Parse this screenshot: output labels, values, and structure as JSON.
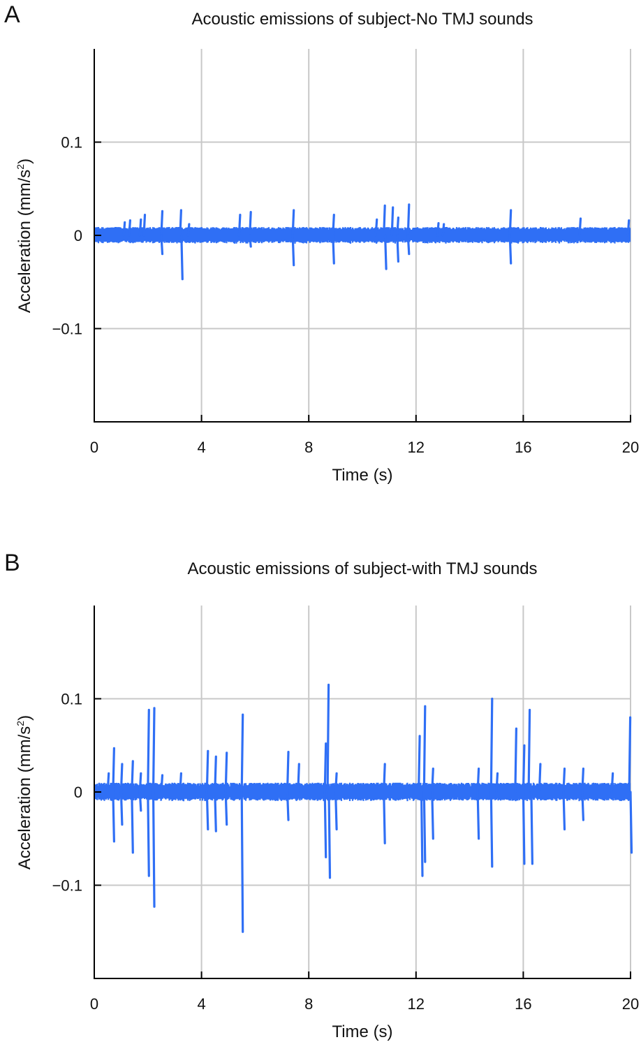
{
  "chart_data": [
    {
      "type": "line",
      "panel_label": "A",
      "title": "Acoustic emissions of subject-No TMJ sounds",
      "xlabel": "Time (s)",
      "ylabel": "Acceleration (mm/s",
      "ylabel_sup": "2",
      "ylabel_close": ")",
      "xlim": [
        0,
        20
      ],
      "ylim": [
        -0.2,
        0.2
      ],
      "xticks": [
        0,
        4,
        8,
        12,
        16,
        20
      ],
      "yticks": [
        -0.1,
        0,
        0.1
      ],
      "ytick_labels": [
        "−0.1",
        "0",
        "0.1"
      ],
      "grid": true,
      "line_color": "#2f6ff5",
      "baseline_amplitude": 0.009,
      "spikes": [
        {
          "x": 1.1,
          "y": 0.014
        },
        {
          "x": 1.3,
          "y": 0.016
        },
        {
          "x": 1.7,
          "y": 0.017
        },
        {
          "x": 1.85,
          "y": 0.022
        },
        {
          "x": 2.5,
          "y": 0.026
        },
        {
          "x": 2.5,
          "y": -0.02
        },
        {
          "x": 3.2,
          "y": 0.027
        },
        {
          "x": 3.25,
          "y": -0.047
        },
        {
          "x": 3.5,
          "y": 0.012
        },
        {
          "x": 5.4,
          "y": 0.022
        },
        {
          "x": 5.8,
          "y": 0.025
        },
        {
          "x": 5.8,
          "y": -0.012
        },
        {
          "x": 7.4,
          "y": 0.027
        },
        {
          "x": 7.4,
          "y": -0.032
        },
        {
          "x": 8.9,
          "y": 0.022
        },
        {
          "x": 8.9,
          "y": -0.03
        },
        {
          "x": 10.5,
          "y": 0.017
        },
        {
          "x": 10.8,
          "y": 0.032
        },
        {
          "x": 10.85,
          "y": -0.036
        },
        {
          "x": 11.1,
          "y": 0.03
        },
        {
          "x": 11.3,
          "y": 0.019
        },
        {
          "x": 11.3,
          "y": -0.028
        },
        {
          "x": 11.7,
          "y": 0.033
        },
        {
          "x": 11.7,
          "y": -0.02
        },
        {
          "x": 12.8,
          "y": 0.013
        },
        {
          "x": 13.0,
          "y": 0.012
        },
        {
          "x": 15.5,
          "y": 0.027
        },
        {
          "x": 15.5,
          "y": -0.03
        },
        {
          "x": 18.1,
          "y": 0.018
        },
        {
          "x": 19.9,
          "y": 0.016
        }
      ]
    },
    {
      "type": "line",
      "panel_label": "B",
      "title": "Acoustic emissions of subject-with TMJ sounds",
      "xlabel": "Time (s)",
      "ylabel": "Acceleration (mm/s",
      "ylabel_sup": "2",
      "ylabel_close": ")",
      "xlim": [
        0,
        20
      ],
      "ylim": [
        -0.2,
        0.2
      ],
      "xticks": [
        0,
        4,
        8,
        12,
        16,
        20
      ],
      "yticks": [
        -0.1,
        0,
        0.1
      ],
      "ytick_labels": [
        "−0.1",
        "0",
        "0.1"
      ],
      "grid": true,
      "line_color": "#2f6ff5",
      "baseline_amplitude": 0.01,
      "spikes": [
        {
          "x": 0.5,
          "y": 0.02
        },
        {
          "x": 0.7,
          "y": 0.047
        },
        {
          "x": 0.7,
          "y": -0.053
        },
        {
          "x": 1.0,
          "y": 0.03
        },
        {
          "x": 1.0,
          "y": -0.035
        },
        {
          "x": 1.4,
          "y": 0.033
        },
        {
          "x": 1.4,
          "y": -0.065
        },
        {
          "x": 1.7,
          "y": 0.02
        },
        {
          "x": 1.7,
          "y": -0.02
        },
        {
          "x": 2.0,
          "y": 0.088
        },
        {
          "x": 2.0,
          "y": -0.09
        },
        {
          "x": 2.2,
          "y": 0.09
        },
        {
          "x": 2.2,
          "y": -0.123
        },
        {
          "x": 2.5,
          "y": 0.018
        },
        {
          "x": 3.2,
          "y": 0.02
        },
        {
          "x": 4.2,
          "y": 0.044
        },
        {
          "x": 4.2,
          "y": -0.04
        },
        {
          "x": 4.5,
          "y": 0.038
        },
        {
          "x": 4.5,
          "y": -0.042
        },
        {
          "x": 4.9,
          "y": 0.042
        },
        {
          "x": 4.9,
          "y": -0.035
        },
        {
          "x": 5.5,
          "y": 0.083
        },
        {
          "x": 5.5,
          "y": -0.15
        },
        {
          "x": 7.2,
          "y": 0.043
        },
        {
          "x": 7.2,
          "y": -0.03
        },
        {
          "x": 7.6,
          "y": 0.03
        },
        {
          "x": 8.6,
          "y": 0.052
        },
        {
          "x": 8.6,
          "y": -0.07
        },
        {
          "x": 8.7,
          "y": 0.115
        },
        {
          "x": 8.75,
          "y": -0.092
        },
        {
          "x": 9.0,
          "y": 0.02
        },
        {
          "x": 9.0,
          "y": -0.04
        },
        {
          "x": 10.8,
          "y": 0.03
        },
        {
          "x": 10.8,
          "y": -0.055
        },
        {
          "x": 12.1,
          "y": 0.06
        },
        {
          "x": 12.2,
          "y": -0.09
        },
        {
          "x": 12.3,
          "y": 0.092
        },
        {
          "x": 12.3,
          "y": -0.075
        },
        {
          "x": 12.6,
          "y": 0.025
        },
        {
          "x": 12.6,
          "y": -0.05
        },
        {
          "x": 14.3,
          "y": 0.025
        },
        {
          "x": 14.3,
          "y": -0.05
        },
        {
          "x": 14.8,
          "y": 0.1
        },
        {
          "x": 14.8,
          "y": -0.08
        },
        {
          "x": 15.0,
          "y": 0.02
        },
        {
          "x": 15.7,
          "y": 0.068
        },
        {
          "x": 16.0,
          "y": 0.05
        },
        {
          "x": 16.0,
          "y": -0.077
        },
        {
          "x": 16.2,
          "y": 0.088
        },
        {
          "x": 16.3,
          "y": -0.077
        },
        {
          "x": 16.6,
          "y": 0.03
        },
        {
          "x": 17.5,
          "y": 0.025
        },
        {
          "x": 17.5,
          "y": -0.04
        },
        {
          "x": 18.2,
          "y": 0.025
        },
        {
          "x": 18.2,
          "y": -0.03
        },
        {
          "x": 19.3,
          "y": 0.02
        },
        {
          "x": 19.95,
          "y": 0.08
        },
        {
          "x": 20.0,
          "y": -0.065
        }
      ]
    }
  ]
}
